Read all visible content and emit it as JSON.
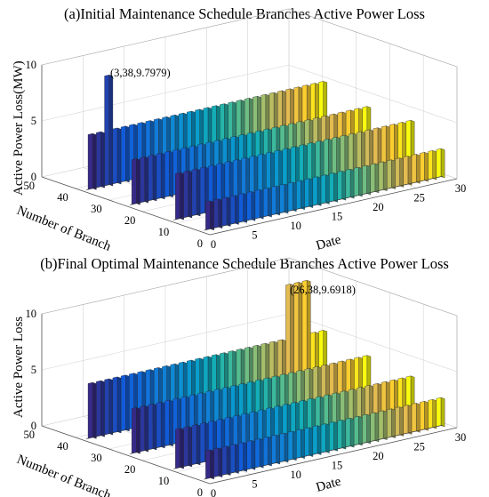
{
  "chart_data": [
    {
      "type": "3d-ribbon",
      "title": "(a)Initial Maintenance Schedule Branches Active Power Loss",
      "xlabel": "Date",
      "ylabel": "Number of Branch",
      "zlabel": "Active Power Loss(MW)",
      "x_ticks": [
        "0",
        "5",
        "10",
        "15",
        "20",
        "25",
        "30"
      ],
      "y_ticks": [
        "0",
        "10",
        "20",
        "30",
        "40",
        "50"
      ],
      "z_ticks": [
        "0",
        "5",
        "10"
      ],
      "xlim": [
        0,
        30
      ],
      "ylim": [
        0,
        50
      ],
      "zlim": [
        0,
        10
      ],
      "grid": true,
      "colormap": "parula",
      "annotation": {
        "x": 3,
        "y": 38,
        "z": 9.7979,
        "text": "(3,38,9.7979)"
      },
      "ribbons": [
        {
          "branch": 38,
          "baseline": 4.9,
          "peak_days": [
            3
          ],
          "peak_value": 9.7979
        },
        {
          "branch": 25,
          "baseline": 4.0
        },
        {
          "branch": 12,
          "baseline": 4.1
        },
        {
          "branch": 3,
          "baseline": 2.5
        }
      ]
    },
    {
      "type": "3d-ribbon",
      "title": "(b)Final Optimal Maintenance Schedule Branches Active Power Loss",
      "xlabel": "Date",
      "ylabel": "Number of Branch",
      "zlabel": "Active Power Loss",
      "x_ticks": [
        "0",
        "5",
        "10",
        "15",
        "20",
        "25",
        "30"
      ],
      "y_ticks": [
        "0",
        "10",
        "20",
        "30",
        "40",
        "50"
      ],
      "z_ticks": [
        "0",
        "5",
        "10"
      ],
      "xlim": [
        0,
        30
      ],
      "ylim": [
        0,
        50
      ],
      "zlim": [
        0,
        10
      ],
      "grid": true,
      "colormap": "parula",
      "annotation": {
        "x": 26,
        "y": 38,
        "z": 9.6918,
        "text": "(26,38,9.6918)"
      },
      "ribbons": [
        {
          "branch": 38,
          "baseline": 4.9,
          "peak_days": [
            25,
            26,
            27
          ],
          "peak_value": 9.6918
        },
        {
          "branch": 25,
          "baseline": 4.0
        },
        {
          "branch": 12,
          "baseline": 3.5
        },
        {
          "branch": 3,
          "baseline": 2.5
        }
      ]
    }
  ]
}
